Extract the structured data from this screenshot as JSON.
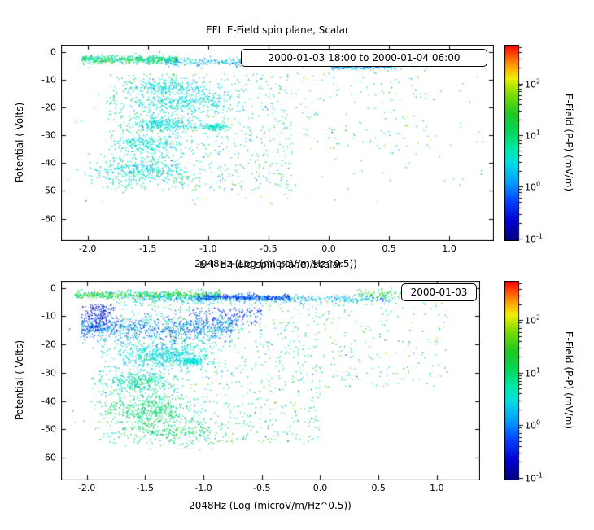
{
  "page": {
    "background": "#ffffff",
    "foreground": "#000000"
  },
  "colormap": {
    "stops": [
      [
        0.0,
        "#000082"
      ],
      [
        0.1,
        "#0000D2"
      ],
      [
        0.2,
        "#0040FF"
      ],
      [
        0.3,
        "#00A0FF"
      ],
      [
        0.4,
        "#00E0E0"
      ],
      [
        0.48,
        "#00E8A0"
      ],
      [
        0.55,
        "#00D860"
      ],
      [
        0.65,
        "#20C820"
      ],
      [
        0.75,
        "#80DC00"
      ],
      [
        0.83,
        "#F0F000"
      ],
      [
        0.9,
        "#FF9800"
      ],
      [
        1.0,
        "#FF0000"
      ]
    ]
  },
  "chart_data": [
    {
      "type": "scatter",
      "panel": "top",
      "title": "EFI  E-Field spin plane, Scalar",
      "xlabel": "2048Hz (Log (microV/m/Hz^0.5))",
      "ylabel": "Potential (-Volts)",
      "legend": "2000-01-03 18:00 to 2000-01-04 06:00",
      "xlim": [
        -2.22,
        1.37
      ],
      "ylim_top": 2.5,
      "ylim_bottom": -68,
      "xticks": [
        "-2.0",
        "-1.5",
        "-1.0",
        "-0.5",
        "0.0",
        "0.5",
        "1.0"
      ],
      "xtick_values": [
        -2.0,
        -1.5,
        -1.0,
        -0.5,
        0.0,
        0.5,
        1.0
      ],
      "yticks": [
        "0",
        "-10",
        "-20",
        "-30",
        "-40",
        "-50",
        "-60"
      ],
      "ytick_values": [
        0,
        -10,
        -20,
        -30,
        -40,
        -50,
        -60
      ],
      "colorbar": {
        "label": "E-Field (P-P) (mV/m)",
        "log_min": -1.05,
        "log_max": 2.75,
        "ticks": [
          {
            "base": "10",
            "exp": "2",
            "value": 2
          },
          {
            "base": "10",
            "exp": "1",
            "value": 1
          },
          {
            "base": "10",
            "exp": "0",
            "value": 0
          },
          {
            "base": "10",
            "exp": "-1",
            "value": -1
          }
        ]
      },
      "seed": 7,
      "clusters": [
        {
          "n": 500,
          "xu": [
            -2.05,
            -1.25
          ],
          "yg": [
            -2.8,
            0.7
          ],
          "v": [
            0.95,
            0.45
          ]
        },
        {
          "n": 350,
          "xu": [
            -1.35,
            0.1
          ],
          "yg": [
            -3.6,
            0.7
          ],
          "v": [
            0.35,
            0.35
          ]
        },
        {
          "n": 260,
          "xu": [
            0.02,
            0.56
          ],
          "yg": [
            -5.2,
            0.5
          ],
          "v": [
            0.05,
            0.25
          ]
        },
        {
          "n": 240,
          "xg": [
            -1.35,
            0.18
          ],
          "yg": [
            -13,
            1.6
          ],
          "v": [
            0.45,
            0.15
          ]
        },
        {
          "n": 340,
          "xg": [
            -1.25,
            0.22
          ],
          "yg": [
            -18.5,
            1.9
          ],
          "v": [
            0.5,
            0.15
          ]
        },
        {
          "n": 280,
          "xg": [
            -1.38,
            0.15
          ],
          "yg": [
            -26,
            1.3
          ],
          "v": [
            0.5,
            0.12
          ]
        },
        {
          "n": 120,
          "xg": [
            -0.95,
            0.05
          ],
          "yg": [
            -27,
            0.6
          ],
          "v": [
            0.55,
            0.1
          ]
        },
        {
          "n": 220,
          "xg": [
            -1.5,
            0.15
          ],
          "yg": [
            -33,
            1.6
          ],
          "v": [
            0.5,
            0.15
          ]
        },
        {
          "n": 380,
          "xg": [
            -1.55,
            0.2
          ],
          "yg": [
            -42.5,
            2.6
          ],
          "v": [
            0.5,
            0.2
          ]
        },
        {
          "n": 700,
          "xu": [
            -1.85,
            -0.3
          ],
          "yu": [
            -50,
            -8
          ],
          "v": [
            0.75,
            0.5
          ]
        },
        {
          "n": 130,
          "xu": [
            -0.3,
            0.95
          ],
          "yu": [
            -35,
            -5
          ],
          "v": [
            1.0,
            0.6
          ]
        },
        {
          "n": 150,
          "xu": [
            -2.1,
            1.3
          ],
          "yu": [
            -55,
            -2
          ],
          "v": [
            1.0,
            0.7
          ]
        }
      ]
    },
    {
      "type": "scatter",
      "panel": "bottom",
      "title": "EFI  E-Field spin plane, Scalar",
      "xlabel": "2048Hz (Log (microV/m/Hz^0.5))",
      "ylabel": "Potential (-Volts)",
      "legend": "2000-01-03",
      "xlim": [
        -2.22,
        1.37
      ],
      "ylim_top": 2.5,
      "ylim_bottom": -68,
      "xticks": [
        "-2.0",
        "-1.5",
        "-1.0",
        "-0.5",
        "0.0",
        "0.5",
        "1.0"
      ],
      "xtick_values": [
        -2.0,
        -1.5,
        -1.0,
        -0.5,
        0.0,
        0.5,
        1.0
      ],
      "yticks": [
        "0",
        "-10",
        "-20",
        "-30",
        "-40",
        "-50",
        "-60"
      ],
      "ytick_values": [
        0,
        -10,
        -20,
        -30,
        -40,
        -50,
        -60
      ],
      "colorbar": {
        "label": "E-Field (P-P) (mV/m)",
        "log_min": -1.05,
        "log_max": 2.75,
        "ticks": [
          {
            "base": "10",
            "exp": "2",
            "value": 2
          },
          {
            "base": "10",
            "exp": "1",
            "value": 1
          },
          {
            "base": "10",
            "exp": "0",
            "value": 0
          },
          {
            "base": "10",
            "exp": "-1",
            "value": -1
          }
        ]
      },
      "seed": 13,
      "clusters": [
        {
          "n": 600,
          "xu": [
            -2.1,
            -0.85
          ],
          "yg": [
            -2.5,
            0.7
          ],
          "v": [
            1.1,
            0.5
          ]
        },
        {
          "n": 500,
          "xu": [
            -1.6,
            0.6
          ],
          "yg": [
            -3.9,
            0.7
          ],
          "v": [
            0.3,
            0.35
          ]
        },
        {
          "n": 300,
          "xu": [
            -1.05,
            -0.25
          ],
          "yg": [
            -3.3,
            0.5
          ],
          "v": [
            -0.3,
            0.2
          ]
        },
        {
          "n": 220,
          "xg": [
            -1.9,
            0.07
          ],
          "yu": [
            -15,
            -6
          ],
          "v": [
            -0.55,
            0.15
          ]
        },
        {
          "n": 800,
          "xu": [
            -2.05,
            -0.75
          ],
          "yg": [
            -14.5,
            2.2
          ],
          "v": [
            0.0,
            0.4
          ]
        },
        {
          "n": 150,
          "xu": [
            -1.1,
            -0.5
          ],
          "yu": [
            -13,
            -7
          ],
          "v": [
            -0.35,
            0.2
          ]
        },
        {
          "n": 600,
          "xg": [
            -1.35,
            0.2
          ],
          "yg": [
            -24,
            2.5
          ],
          "v": [
            0.45,
            0.15
          ]
        },
        {
          "n": 150,
          "xg": [
            -1.1,
            0.05
          ],
          "yg": [
            -26,
            0.6
          ],
          "v": [
            0.5,
            0.1
          ]
        },
        {
          "n": 300,
          "xg": [
            -1.55,
            0.16
          ],
          "yg": [
            -33,
            1.8
          ],
          "v": [
            0.7,
            0.3
          ]
        },
        {
          "n": 450,
          "xg": [
            -1.5,
            0.2
          ],
          "yg": [
            -43,
            2.8
          ],
          "v": [
            1.0,
            0.3
          ]
        },
        {
          "n": 250,
          "xg": [
            -1.25,
            0.25
          ],
          "yg": [
            -51,
            2.5
          ],
          "v": [
            1.0,
            0.3
          ]
        },
        {
          "n": 900,
          "xu": [
            -1.9,
            0.0
          ],
          "yu": [
            -55,
            -5
          ],
          "v": [
            0.8,
            0.5
          ]
        },
        {
          "n": 200,
          "xu": [
            0.0,
            1.1
          ],
          "yu": [
            -35,
            -2
          ],
          "v": [
            1.1,
            0.6
          ]
        },
        {
          "n": 80,
          "xu": [
            0.3,
            0.75
          ],
          "yg": [
            -2.2,
            0.8
          ],
          "v": [
            1.2,
            0.4
          ]
        }
      ]
    }
  ]
}
